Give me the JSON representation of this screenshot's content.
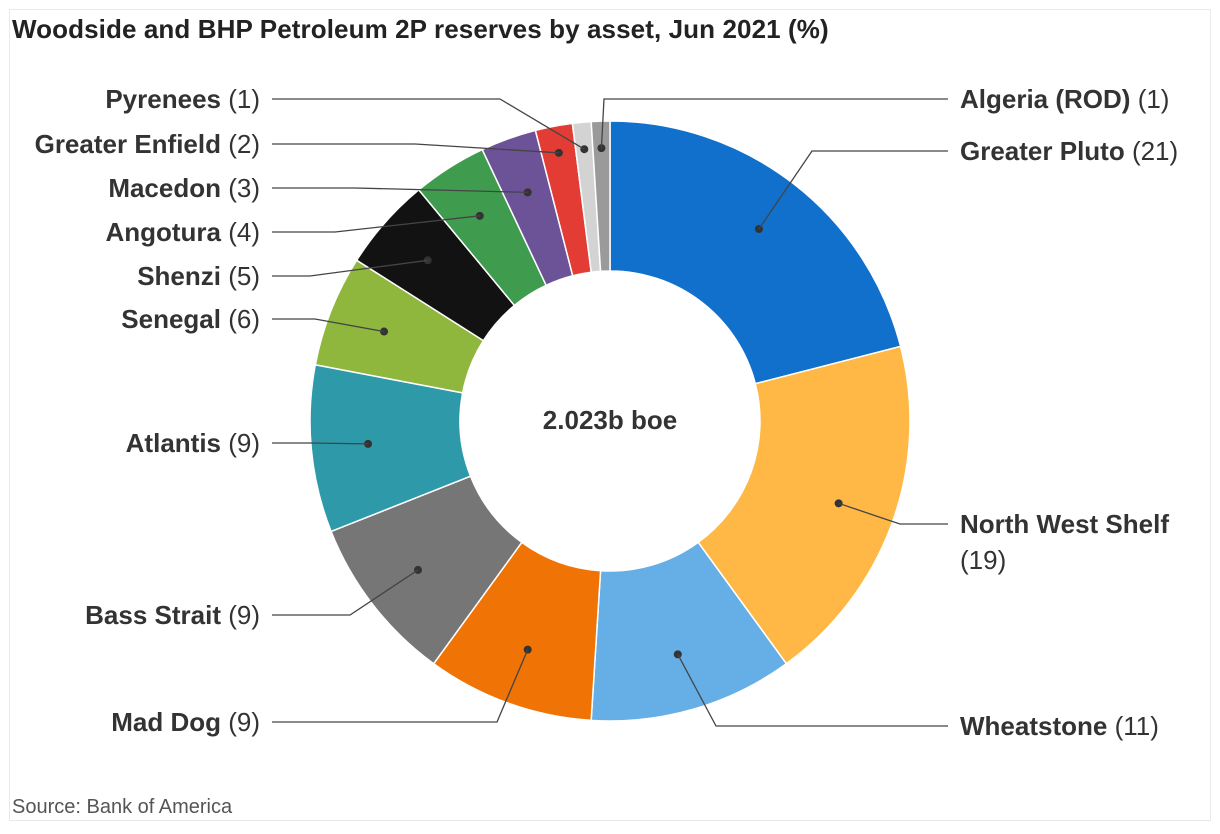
{
  "title": "Woodside and BHP Petroleum 2P reserves by asset, Jun 2021 (%)",
  "source": "Source: Bank of America",
  "chart_data": {
    "type": "pie",
    "variant": "donut",
    "title": "Woodside and BHP Petroleum 2P reserves by asset, Jun 2021 (%)",
    "center_label": "2.023b boe",
    "unit": "%",
    "slices": [
      {
        "name": "Greater Pluto",
        "value": 21,
        "value_label": "(21)",
        "color": "#1170cb"
      },
      {
        "name": "North West Shelf",
        "value": 19,
        "value_label": "(19)",
        "color": "#ffb845"
      },
      {
        "name": "Wheatstone",
        "value": 11,
        "value_label": "(11)",
        "color": "#66aee6"
      },
      {
        "name": "Mad Dog",
        "value": 9,
        "value_label": "(9)",
        "color": "#f07306"
      },
      {
        "name": "Bass Strait",
        "value": 9,
        "value_label": "(9)",
        "color": "#767676"
      },
      {
        "name": "Atlantis",
        "value": 9,
        "value_label": "(9)",
        "color": "#2e9aa9"
      },
      {
        "name": "Senegal",
        "value": 6,
        "value_label": "(6)",
        "color": "#8fb73e"
      },
      {
        "name": "Shenzi",
        "value": 5,
        "value_label": "(5)",
        "color": "#121212"
      },
      {
        "name": "Angotura",
        "value": 4,
        "value_label": "(4)",
        "color": "#3f9c4f"
      },
      {
        "name": "Macedon",
        "value": 3,
        "value_label": "(3)",
        "color": "#6c5297"
      },
      {
        "name": "Greater Enfield",
        "value": 2,
        "value_label": "(2)",
        "color": "#e23c35"
      },
      {
        "name": "Pyrenees",
        "value": 1,
        "value_label": "(1)",
        "color": "#d3d3d3"
      },
      {
        "name": "Algeria (ROD)",
        "value": 1,
        "value_label": "(1)",
        "color": "#9a9a9a"
      }
    ]
  }
}
